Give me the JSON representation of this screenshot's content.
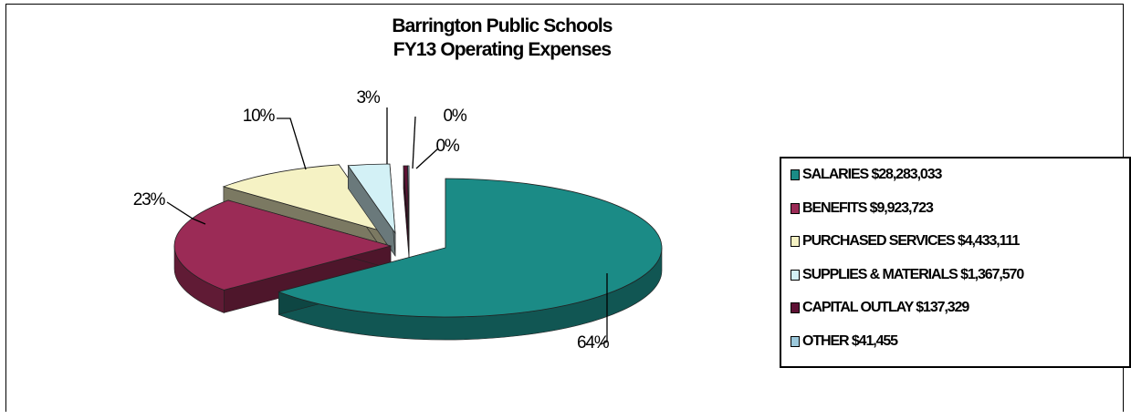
{
  "chart_data": {
    "type": "pie",
    "title": "Barrington Public Schools",
    "subtitle": "FY13 Operating Expenses",
    "legend_position": "right",
    "slices": [
      {
        "label": "SALARIES $28,283,033",
        "value": 28283033,
        "percent_label": "64%",
        "color": "#1b8b86"
      },
      {
        "label": "BENEFITS $9,923,723",
        "value": 9923723,
        "percent_label": "23%",
        "color": "#9b2b56"
      },
      {
        "label": "PURCHASED SERVICES $4,433,111",
        "value": 4433111,
        "percent_label": "10%",
        "color": "#f5f2c4"
      },
      {
        "label": "SUPPLIES & MATERIALS $1,367,570",
        "value": 1367570,
        "percent_label": "3%",
        "color": "#d3f1f6"
      },
      {
        "label": "CAPITAL OUTLAY $137,329",
        "value": 137329,
        "percent_label": "0%",
        "color": "#5e1134"
      },
      {
        "label": "OTHER $41,455",
        "value": 41455,
        "percent_label": "0%",
        "color": "#9cc9dc"
      }
    ]
  }
}
